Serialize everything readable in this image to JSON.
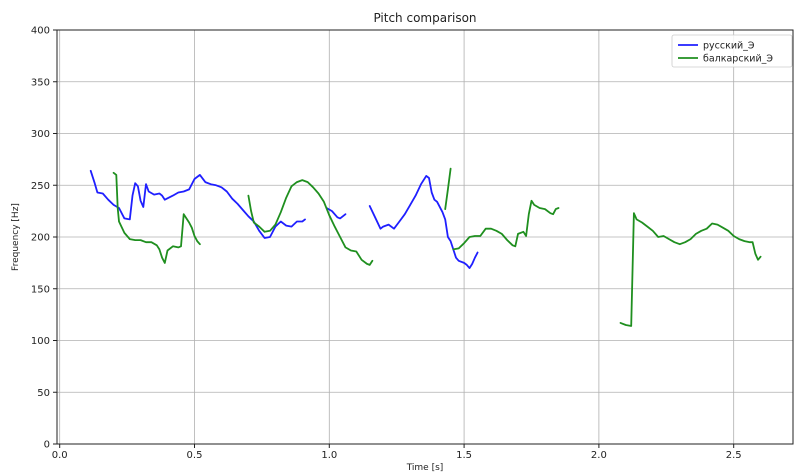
{
  "chart_data": {
    "type": "line",
    "title": "Pitch comparison",
    "xlabel": "Time [s]",
    "ylabel": "Frequency [Hz]",
    "xlim": [
      -0.01,
      2.72
    ],
    "ylim": [
      0,
      400
    ],
    "xticks": [
      0.0,
      0.5,
      1.0,
      1.5,
      2.0,
      2.5
    ],
    "xtick_labels": [
      "0.0",
      "0.5",
      "1.0",
      "1.5",
      "2.0",
      "2.5"
    ],
    "yticks": [
      0,
      50,
      100,
      150,
      200,
      250,
      300,
      350,
      400
    ],
    "ytick_labels": [
      "0",
      "50",
      "100",
      "150",
      "200",
      "250",
      "300",
      "350",
      "400"
    ],
    "grid": true,
    "legend": {
      "position": "top-right"
    },
    "series": [
      {
        "name": "русский_Э",
        "color": "#1f1fff",
        "segments": [
          [
            [
              0.115,
              264
            ],
            [
              0.13,
              252
            ],
            [
              0.14,
              243
            ],
            [
              0.16,
              242
            ],
            [
              0.18,
              236
            ],
            [
              0.2,
              231
            ],
            [
              0.22,
              228
            ],
            [
              0.24,
              218
            ],
            [
              0.26,
              217
            ],
            [
              0.27,
              240
            ],
            [
              0.28,
              252
            ],
            [
              0.29,
              249
            ],
            [
              0.3,
              235
            ],
            [
              0.31,
              229
            ],
            [
              0.32,
              251
            ],
            [
              0.33,
              244
            ],
            [
              0.35,
              241
            ],
            [
              0.37,
              242
            ],
            [
              0.38,
              240
            ],
            [
              0.39,
              236
            ],
            [
              0.42,
              240
            ],
            [
              0.44,
              243
            ],
            [
              0.46,
              244
            ],
            [
              0.48,
              246
            ],
            [
              0.5,
              256
            ],
            [
              0.52,
              260
            ],
            [
              0.54,
              253
            ],
            [
              0.56,
              251
            ],
            [
              0.58,
              250
            ],
            [
              0.6,
              248
            ],
            [
              0.62,
              244
            ],
            [
              0.64,
              237
            ],
            [
              0.66,
              232
            ],
            [
              0.68,
              226
            ],
            [
              0.7,
              220
            ],
            [
              0.72,
              215
            ],
            [
              0.74,
              206
            ],
            [
              0.76,
              199
            ],
            [
              0.78,
              200
            ],
            [
              0.8,
              210
            ],
            [
              0.82,
              215
            ],
            [
              0.84,
              211
            ],
            [
              0.86,
              210
            ],
            [
              0.88,
              215
            ],
            [
              0.9,
              215
            ],
            [
              0.91,
              217
            ]
          ],
          [
            [
              0.99,
              228
            ],
            [
              1.01,
              225
            ],
            [
              1.03,
              219
            ],
            [
              1.04,
              218
            ],
            [
              1.06,
              222
            ]
          ],
          [
            [
              1.15,
              230
            ],
            [
              1.17,
              219
            ],
            [
              1.19,
              208
            ],
            [
              1.2,
              210
            ],
            [
              1.22,
              212
            ],
            [
              1.24,
              208
            ],
            [
              1.26,
              215
            ],
            [
              1.28,
              222
            ],
            [
              1.3,
              231
            ],
            [
              1.32,
              240
            ],
            [
              1.34,
              251
            ],
            [
              1.36,
              259
            ],
            [
              1.37,
              257
            ],
            [
              1.38,
              243
            ],
            [
              1.39,
              236
            ],
            [
              1.4,
              234
            ],
            [
              1.42,
              224
            ],
            [
              1.43,
              217
            ],
            [
              1.44,
              200
            ],
            [
              1.45,
              196
            ],
            [
              1.46,
              188
            ],
            [
              1.47,
              180
            ],
            [
              1.48,
              177
            ],
            [
              1.5,
              175
            ],
            [
              1.51,
              173
            ],
            [
              1.52,
              170
            ],
            [
              1.53,
              174
            ],
            [
              1.54,
              180
            ],
            [
              1.55,
              185
            ]
          ]
        ]
      },
      {
        "name": "балкарский_Э",
        "color": "#1f8f1f",
        "segments": [
          [
            [
              0.2,
              262
            ],
            [
              0.21,
              260
            ],
            [
              0.215,
              228
            ],
            [
              0.22,
              215
            ],
            [
              0.24,
              204
            ],
            [
              0.26,
              198
            ],
            [
              0.28,
              197
            ],
            [
              0.3,
              197
            ],
            [
              0.32,
              195
            ],
            [
              0.34,
              195
            ],
            [
              0.36,
              192
            ],
            [
              0.37,
              188
            ],
            [
              0.38,
              180
            ],
            [
              0.39,
              175
            ],
            [
              0.4,
              187
            ],
            [
              0.42,
              191
            ],
            [
              0.44,
              190
            ],
            [
              0.45,
              191
            ],
            [
              0.46,
              222
            ],
            [
              0.48,
              214
            ],
            [
              0.49,
              209
            ],
            [
              0.5,
              201
            ],
            [
              0.51,
              196
            ],
            [
              0.52,
              193
            ]
          ],
          [
            [
              0.7,
              240
            ],
            [
              0.71,
              225
            ],
            [
              0.72,
              214
            ],
            [
              0.74,
              210
            ],
            [
              0.76,
              205
            ],
            [
              0.78,
              206
            ],
            [
              0.8,
              212
            ],
            [
              0.82,
              224
            ],
            [
              0.84,
              238
            ],
            [
              0.86,
              249
            ],
            [
              0.88,
              253
            ],
            [
              0.9,
              255
            ],
            [
              0.92,
              253
            ],
            [
              0.94,
              248
            ],
            [
              0.96,
              242
            ],
            [
              0.98,
              234
            ],
            [
              1.0,
              221
            ],
            [
              1.02,
              210
            ],
            [
              1.04,
              200
            ],
            [
              1.06,
              190
            ],
            [
              1.08,
              187
            ],
            [
              1.1,
              186
            ],
            [
              1.12,
              178
            ],
            [
              1.14,
              174
            ],
            [
              1.15,
              173
            ],
            [
              1.16,
              177
            ]
          ],
          [
            [
              1.43,
              227
            ],
            [
              1.44,
              246
            ],
            [
              1.45,
              266
            ]
          ],
          [
            [
              1.46,
              188
            ],
            [
              1.48,
              189
            ],
            [
              1.5,
              194
            ],
            [
              1.52,
              200
            ],
            [
              1.54,
              201
            ],
            [
              1.56,
              201
            ],
            [
              1.58,
              208
            ],
            [
              1.6,
              208
            ],
            [
              1.62,
              206
            ],
            [
              1.64,
              203
            ],
            [
              1.66,
              197
            ],
            [
              1.68,
              192
            ],
            [
              1.69,
              191
            ],
            [
              1.7,
              203
            ],
            [
              1.72,
              205
            ],
            [
              1.73,
              201
            ],
            [
              1.74,
              222
            ],
            [
              1.75,
              235
            ],
            [
              1.76,
              231
            ],
            [
              1.78,
              228
            ],
            [
              1.8,
              227
            ],
            [
              1.82,
              223
            ],
            [
              1.83,
              222
            ],
            [
              1.84,
              227
            ],
            [
              1.85,
              228
            ]
          ],
          [
            [
              2.08,
              117
            ],
            [
              2.1,
              115
            ],
            [
              2.12,
              114
            ],
            [
              2.13,
              223
            ],
            [
              2.14,
              217
            ],
            [
              2.16,
              214
            ],
            [
              2.18,
              210
            ],
            [
              2.2,
              206
            ],
            [
              2.22,
              200
            ],
            [
              2.24,
              201
            ],
            [
              2.26,
              198
            ],
            [
              2.28,
              195
            ],
            [
              2.3,
              193
            ],
            [
              2.32,
              195
            ],
            [
              2.34,
              198
            ],
            [
              2.36,
              203
            ],
            [
              2.38,
              206
            ],
            [
              2.4,
              208
            ],
            [
              2.42,
              213
            ],
            [
              2.44,
              212
            ],
            [
              2.46,
              209
            ],
            [
              2.48,
              206
            ],
            [
              2.5,
              201
            ],
            [
              2.52,
              198
            ],
            [
              2.54,
              196
            ],
            [
              2.56,
              195
            ],
            [
              2.57,
              195
            ],
            [
              2.58,
              184
            ],
            [
              2.59,
              178
            ],
            [
              2.6,
              181
            ]
          ]
        ]
      }
    ]
  }
}
